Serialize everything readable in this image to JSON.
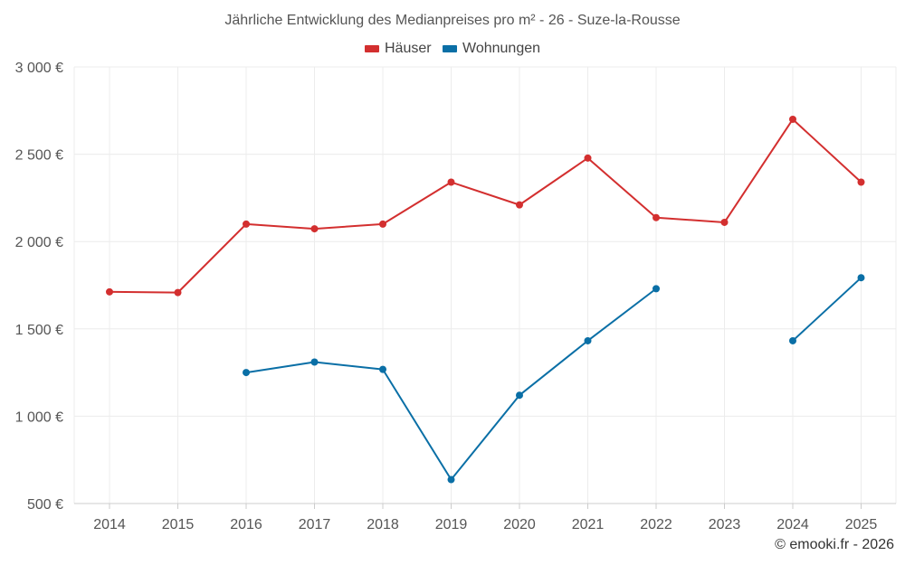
{
  "chart_data": {
    "type": "line",
    "title": "Jährliche Entwicklung des Medianpreises pro m² - 26 - Suze-la-Rousse",
    "categories": [
      "2014",
      "2015",
      "2016",
      "2017",
      "2018",
      "2019",
      "2020",
      "2021",
      "2022",
      "2023",
      "2024",
      "2025"
    ],
    "ylim": [
      500,
      3000
    ],
    "yticks": [
      500,
      1000,
      1500,
      2000,
      2500,
      3000
    ],
    "ytick_labels": [
      "500 €",
      "1 000 €",
      "1 500 €",
      "2 000 €",
      "2 500 €",
      "3 000 €"
    ],
    "series": [
      {
        "name": "Häuser",
        "color": "#d32f2f",
        "values": [
          1712,
          1708,
          2100,
          2073,
          2100,
          2340,
          2210,
          2478,
          2137,
          2110,
          2700,
          2340
        ]
      },
      {
        "name": "Wohnungen",
        "color": "#0a6fa6",
        "values": [
          null,
          null,
          1250,
          1310,
          1268,
          637,
          1120,
          1432,
          1730,
          null,
          1432,
          1793
        ]
      }
    ],
    "legend_position": "top-center",
    "grid": true
  },
  "credit": "© emooki.fr - 2026"
}
